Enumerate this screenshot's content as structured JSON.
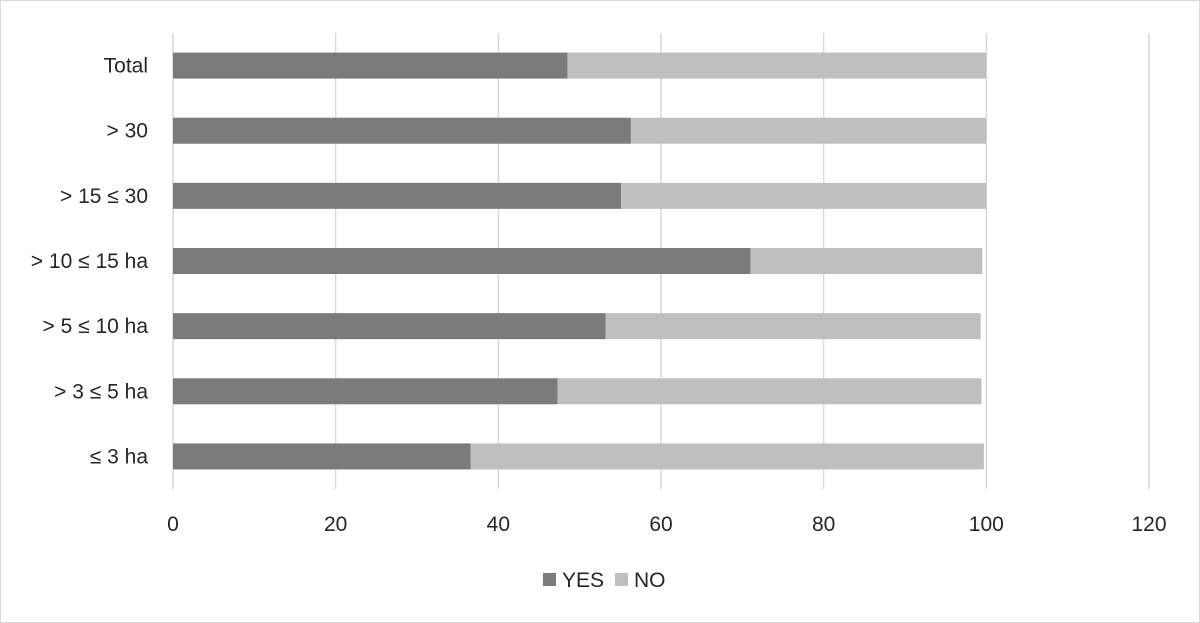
{
  "chart_data": {
    "type": "bar",
    "orientation": "horizontal",
    "stacked": true,
    "categories": [
      "Total",
      "> 30",
      "> 15 ≤ 30",
      "> 10 ≤ 15 ha",
      "> 5 ≤ 10 ha",
      "> 3 ≤ 5 ha",
      "≤ 3 ha"
    ],
    "series": [
      {
        "name": "YES",
        "color": "#7b7b7c",
        "values": [
          48.5,
          56.3,
          55.1,
          71.0,
          53.2,
          47.3,
          36.6
        ]
      },
      {
        "name": "NO",
        "color": "#bfbfbf",
        "values": [
          51.5,
          43.7,
          44.9,
          28.5,
          46.1,
          52.1,
          63.1
        ]
      }
    ],
    "title": "",
    "xlabel": "",
    "ylabel": "",
    "xlim": [
      0,
      120
    ],
    "xticks": [
      0,
      20,
      40,
      60,
      80,
      100,
      120
    ],
    "grid": true,
    "legend_position": "bottom"
  }
}
